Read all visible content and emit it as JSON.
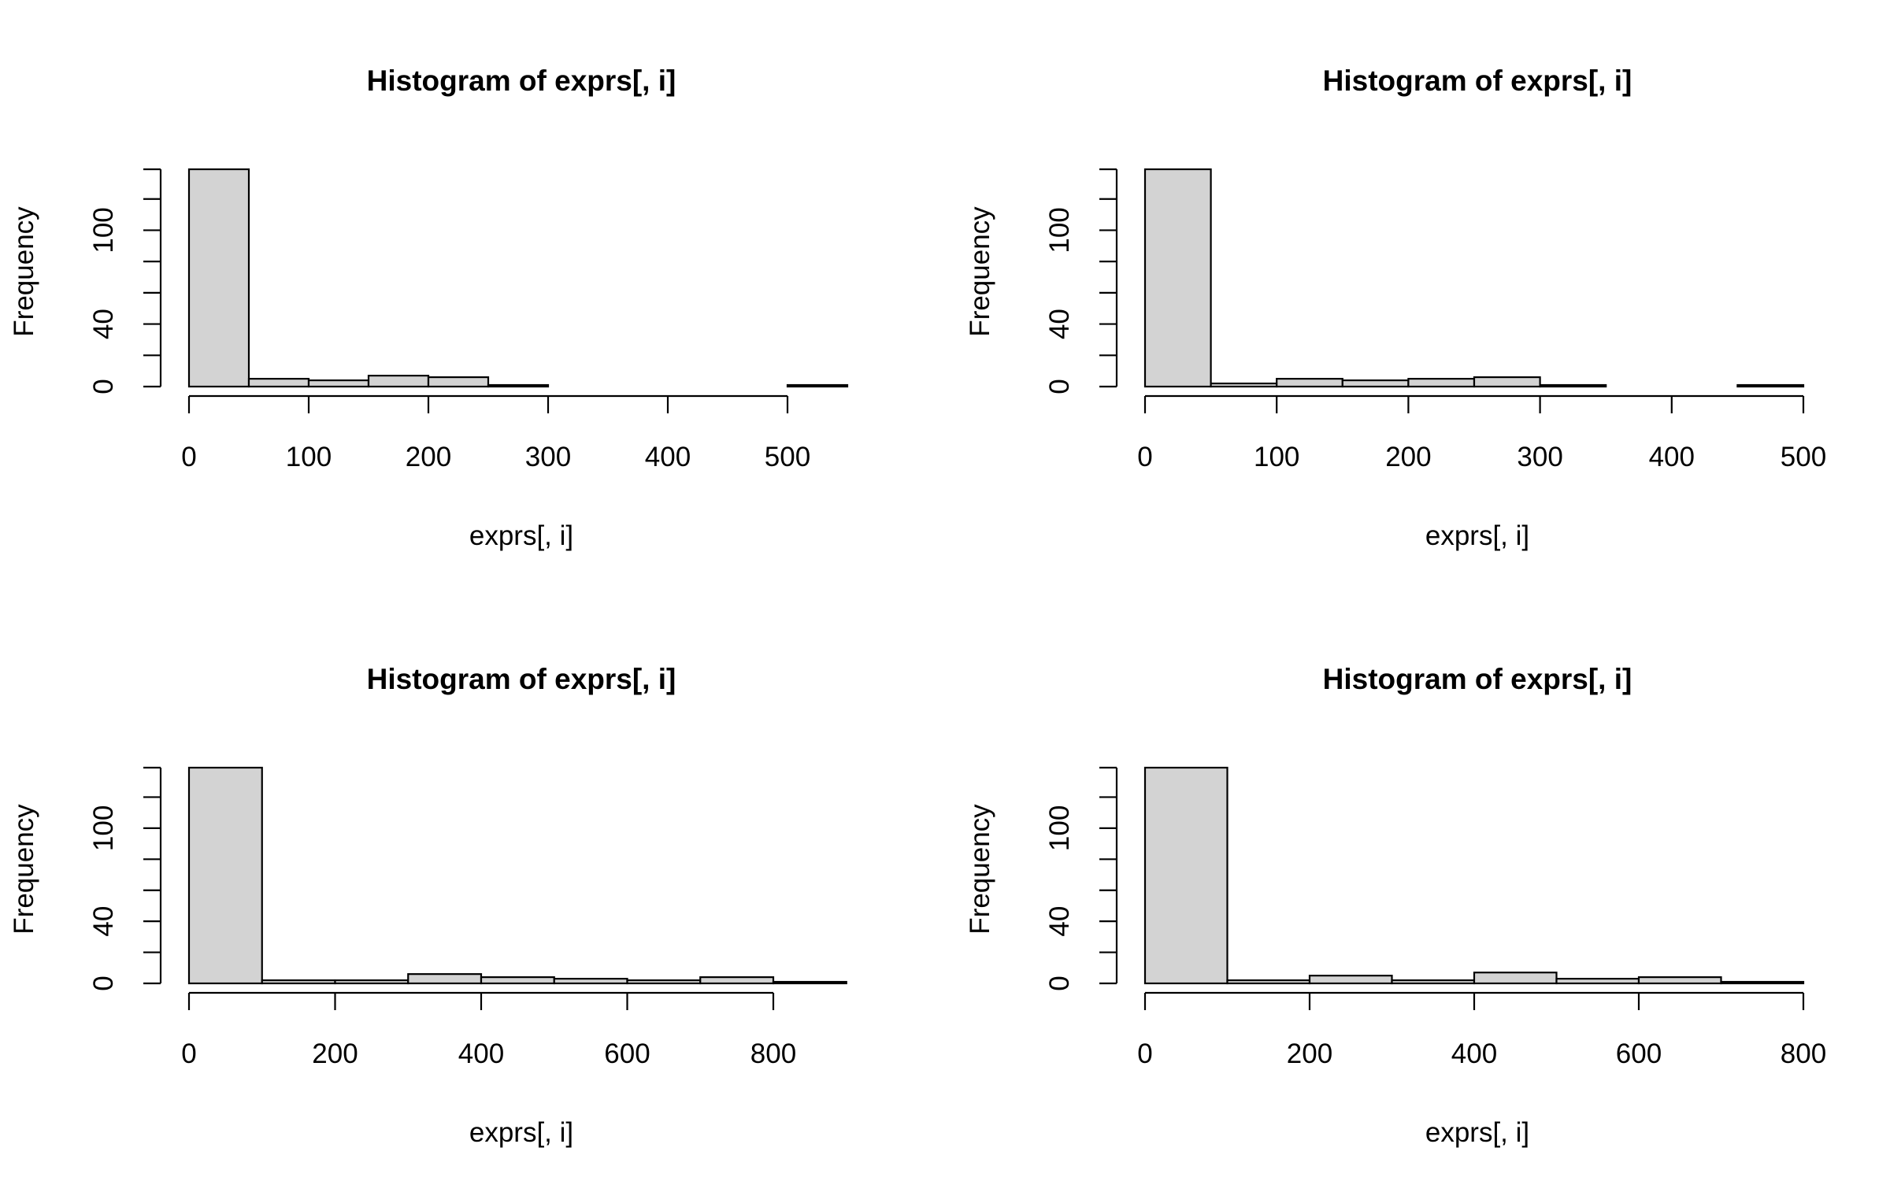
{
  "colors": {
    "bar_fill": "#d3d3d3",
    "stroke": "#000000",
    "background": "#ffffff"
  },
  "chart_data": [
    {
      "type": "bar",
      "subtype": "histogram",
      "title": "Histogram of exprs[, i]",
      "xlabel": "exprs[, i]",
      "ylabel": "Frequency",
      "bin_edges": [
        0,
        50,
        100,
        150,
        200,
        250,
        300,
        350,
        400,
        450,
        500,
        550
      ],
      "values": [
        139,
        5,
        4,
        7,
        6,
        1,
        0,
        0,
        0,
        0,
        1
      ],
      "xlim": [
        0,
        550
      ],
      "ylim": [
        0,
        139
      ],
      "xticks": [
        0,
        100,
        200,
        300,
        400,
        500
      ],
      "yticks": [
        0,
        20,
        40,
        60,
        80,
        100,
        120,
        140
      ],
      "ytick_labels": [
        "0",
        "",
        "40",
        "",
        "",
        "100",
        "",
        ""
      ],
      "grid": false
    },
    {
      "type": "bar",
      "subtype": "histogram",
      "title": "Histogram of exprs[, i]",
      "xlabel": "exprs[, i]",
      "ylabel": "Frequency",
      "bin_edges": [
        0,
        50,
        100,
        150,
        200,
        250,
        300,
        350,
        400,
        450,
        500
      ],
      "values": [
        139,
        2,
        5,
        4,
        5,
        6,
        1,
        0,
        0,
        1
      ],
      "xlim": [
        0,
        500
      ],
      "ylim": [
        0,
        139
      ],
      "xticks": [
        0,
        100,
        200,
        300,
        400,
        500
      ],
      "yticks": [
        0,
        20,
        40,
        60,
        80,
        100,
        120,
        140
      ],
      "ytick_labels": [
        "0",
        "",
        "40",
        "",
        "",
        "100",
        "",
        ""
      ],
      "grid": false
    },
    {
      "type": "bar",
      "subtype": "histogram",
      "title": "Histogram of exprs[, i]",
      "xlabel": "exprs[, i]",
      "ylabel": "Frequency",
      "bin_edges": [
        0,
        100,
        200,
        300,
        400,
        500,
        600,
        700,
        800,
        900
      ],
      "values": [
        139,
        2,
        2,
        6,
        4,
        3,
        2,
        4,
        1
      ],
      "xlim": [
        0,
        900
      ],
      "ylim": [
        0,
        139
      ],
      "xticks": [
        0,
        200,
        400,
        600,
        800
      ],
      "yticks": [
        0,
        20,
        40,
        60,
        80,
        100,
        120,
        140
      ],
      "ytick_labels": [
        "0",
        "",
        "40",
        "",
        "",
        "100",
        "",
        ""
      ],
      "grid": false
    },
    {
      "type": "bar",
      "subtype": "histogram",
      "title": "Histogram of exprs[, i]",
      "xlabel": "exprs[, i]",
      "ylabel": "Frequency",
      "bin_edges": [
        0,
        100,
        200,
        300,
        400,
        500,
        600,
        700,
        800
      ],
      "values": [
        139,
        2,
        5,
        2,
        7,
        3,
        4,
        1
      ],
      "xlim": [
        0,
        800
      ],
      "ylim": [
        0,
        139
      ],
      "xticks": [
        0,
        200,
        400,
        600,
        800
      ],
      "yticks": [
        0,
        20,
        40,
        60,
        80,
        100,
        120,
        140
      ],
      "ytick_labels": [
        "0",
        "",
        "40",
        "",
        "",
        "100",
        "",
        ""
      ],
      "grid": false
    }
  ]
}
